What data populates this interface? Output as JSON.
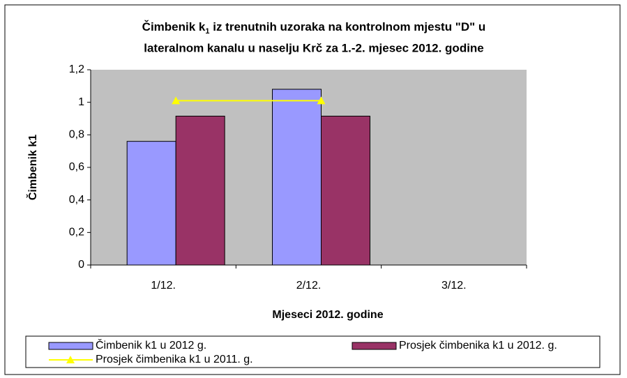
{
  "chart_data": {
    "type": "bar",
    "title": {
      "main": "Čimbenik k",
      "subscript": "1",
      "rest": " iz trenutnih uzoraka na kontrolnom mjestu \"D\" u",
      "line2": "lateralnom kanalu u naselju Krč za 1.-2. mjesec 2012. godine"
    },
    "x_label": "Mjeseci 2012. godine",
    "y_label": "Čimbenik k1",
    "categories": [
      "1/12.",
      "2/12.",
      "3/12."
    ],
    "series": [
      {
        "name": "Čimbenik k1 u 2012 g.",
        "type": "bar",
        "color": "#9999ff",
        "values": [
          0.76,
          1.08,
          null
        ]
      },
      {
        "name": "Prosjek čimbenika k1 u 2012. g.",
        "type": "bar",
        "color": "#993366",
        "values": [
          0.915,
          0.915,
          null
        ]
      },
      {
        "name": "Prosjek čimbenika k1 u 2011. g.",
        "type": "line",
        "color": "#ffff00",
        "values": [
          1.01,
          1.01,
          null
        ]
      }
    ],
    "ylim": [
      0,
      1.2
    ],
    "yticks": [
      0,
      {
        "value": 0.2,
        "label": "0,2"
      },
      {
        "value": 0.4,
        "label": "0,4"
      },
      {
        "value": 0.6,
        "label": "0,6"
      },
      {
        "value": 0.8,
        "label": "0,8"
      },
      1,
      {
        "value": 1.2,
        "label": "1,2"
      }
    ],
    "plot_background": "#c0c0c0",
    "legend": "bottom"
  }
}
